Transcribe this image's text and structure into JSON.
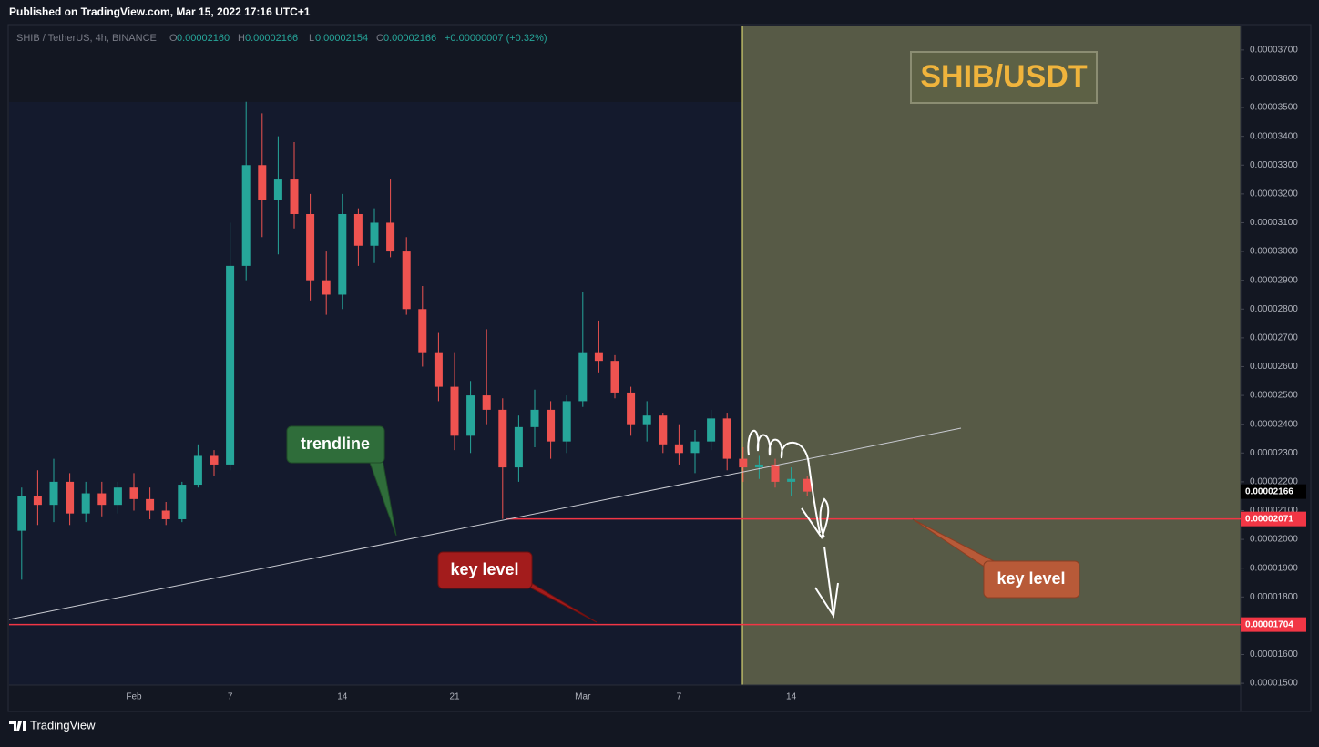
{
  "header": {
    "published": "Published on TradingView.com, Mar 15, 2022 17:16 UTC+1",
    "brand": "TradingView"
  },
  "legend": {
    "symbol": "SHIB / TetherUS, 4h, BINANCE",
    "open_key": "O",
    "open": "0.00002160",
    "high_key": "H",
    "high": "0.00002166",
    "low_key": "L",
    "low": "0.00002154",
    "close_key": "C",
    "close": "0.00002166",
    "change": "+0.00000007 (+0.32%)"
  },
  "chart_data": {
    "type": "candlestick",
    "categories": [
      null,
      null,
      null,
      null,
      null,
      null,
      null,
      "Feb",
      null,
      null,
      null,
      null,
      null,
      "7",
      null,
      null,
      null,
      null,
      null,
      null,
      "14",
      null,
      null,
      null,
      null,
      null,
      null,
      "21",
      null,
      null,
      null,
      null,
      null,
      null,
      null,
      "Mar",
      null,
      null,
      null,
      null,
      null,
      "7",
      null,
      null,
      null,
      null,
      null,
      null,
      "14",
      null
    ],
    "open": [
      2.03e-05,
      2.15e-05,
      2.12e-05,
      2.2e-05,
      2.09e-05,
      2.16e-05,
      2.12e-05,
      2.18e-05,
      2.14e-05,
      2.1e-05,
      2.07e-05,
      2.19e-05,
      2.29e-05,
      2.26e-05,
      2.95e-05,
      3.3e-05,
      3.18e-05,
      3.25e-05,
      3.13e-05,
      2.9e-05,
      2.85e-05,
      3.13e-05,
      3.02e-05,
      3.1e-05,
      3e-05,
      2.8e-05,
      2.65e-05,
      2.53e-05,
      2.36e-05,
      2.5e-05,
      2.45e-05,
      2.25e-05,
      2.39e-05,
      2.45e-05,
      2.34e-05,
      2.48e-05,
      2.65e-05,
      2.62e-05,
      2.51e-05,
      2.4e-05,
      2.43e-05,
      2.33e-05,
      2.3e-05,
      2.34e-05,
      2.42e-05,
      2.28e-05,
      2.25e-05,
      2.26e-05,
      2.2e-05,
      2.21e-05
    ],
    "high": [
      2.18e-05,
      2.24e-05,
      2.28e-05,
      2.23e-05,
      2.2e-05,
      2.2e-05,
      2.2e-05,
      2.23e-05,
      2.18e-05,
      2.13e-05,
      2.2e-05,
      2.33e-05,
      2.31e-05,
      3.1e-05,
      3.52e-05,
      3.48e-05,
      3.4e-05,
      3.38e-05,
      3.2e-05,
      3e-05,
      3.2e-05,
      3.15e-05,
      3.15e-05,
      3.25e-05,
      3.05e-05,
      2.88e-05,
      2.72e-05,
      2.65e-05,
      2.55e-05,
      2.73e-05,
      2.49e-05,
      2.43e-05,
      2.52e-05,
      2.48e-05,
      2.5e-05,
      2.86e-05,
      2.76e-05,
      2.64e-05,
      2.53e-05,
      2.48e-05,
      2.44e-05,
      2.4e-05,
      2.38e-05,
      2.45e-05,
      2.44e-05,
      2.32e-05,
      2.29e-05,
      2.28e-05,
      2.25e-05,
      2.22e-05
    ],
    "low": [
      1.86e-05,
      2.05e-05,
      2.06e-05,
      2.05e-05,
      2.06e-05,
      2.08e-05,
      2.09e-05,
      2.1e-05,
      2.07e-05,
      2.05e-05,
      2.06e-05,
      2.18e-05,
      2.22e-05,
      2.24e-05,
      2.9e-05,
      3.05e-05,
      2.99e-05,
      3.08e-05,
      2.83e-05,
      2.78e-05,
      2.8e-05,
      2.95e-05,
      2.96e-05,
      2.98e-05,
      2.78e-05,
      2.6e-05,
      2.48e-05,
      2.31e-05,
      2.3e-05,
      2.4e-05,
      2.071e-05,
      2.2e-05,
      2.32e-05,
      2.28e-05,
      2.3e-05,
      2.46e-05,
      2.58e-05,
      2.49e-05,
      2.36e-05,
      2.34e-05,
      2.3e-05,
      2.26e-05,
      2.23e-05,
      2.31e-05,
      2.24e-05,
      2.2e-05,
      2.21e-05,
      2.18e-05,
      2.15e-05,
      2.15e-05
    ],
    "close": [
      2.15e-05,
      2.12e-05,
      2.2e-05,
      2.09e-05,
      2.16e-05,
      2.12e-05,
      2.18e-05,
      2.14e-05,
      2.1e-05,
      2.07e-05,
      2.19e-05,
      2.29e-05,
      2.26e-05,
      2.95e-05,
      3.3e-05,
      3.18e-05,
      3.25e-05,
      3.13e-05,
      2.9e-05,
      2.85e-05,
      3.13e-05,
      3.02e-05,
      3.1e-05,
      3e-05,
      2.8e-05,
      2.65e-05,
      2.53e-05,
      2.36e-05,
      2.5e-05,
      2.45e-05,
      2.25e-05,
      2.39e-05,
      2.45e-05,
      2.34e-05,
      2.48e-05,
      2.65e-05,
      2.62e-05,
      2.51e-05,
      2.4e-05,
      2.43e-05,
      2.33e-05,
      2.3e-05,
      2.34e-05,
      2.42e-05,
      2.28e-05,
      2.25e-05,
      2.26e-05,
      2.2e-05,
      2.21e-05,
      2.166e-05
    ],
    "up_color": "#26a69a",
    "down_color": "#ef5350",
    "ylim": [
      1.494e-05,
      3.785e-05
    ],
    "yticks": [
      {
        "value": 1.5e-05,
        "label": "0.00001500"
      },
      {
        "value": 1.6e-05,
        "label": "0.00001600"
      },
      {
        "value": 1.7e-05,
        "label": "0.00001700"
      },
      {
        "value": 1.8e-05,
        "label": "0.00001800"
      },
      {
        "value": 1.9e-05,
        "label": "0.00001900"
      },
      {
        "value": 2e-05,
        "label": "0.00002000"
      },
      {
        "value": 2.1e-05,
        "label": "0.00002100"
      },
      {
        "value": 2.2e-05,
        "label": "0.00002200"
      },
      {
        "value": 2.3e-05,
        "label": "0.00002300"
      },
      {
        "value": 2.4e-05,
        "label": "0.00002400"
      },
      {
        "value": 2.5e-05,
        "label": "0.00002500"
      },
      {
        "value": 2.6e-05,
        "label": "0.00002600"
      },
      {
        "value": 2.7e-05,
        "label": "0.00002700"
      },
      {
        "value": 2.8e-05,
        "label": "0.00002800"
      },
      {
        "value": 2.9e-05,
        "label": "0.00002900"
      },
      {
        "value": 3e-05,
        "label": "0.00003000"
      },
      {
        "value": 3.1e-05,
        "label": "0.00003100"
      },
      {
        "value": 3.2e-05,
        "label": "0.00003200"
      },
      {
        "value": 3.3e-05,
        "label": "0.00003300"
      },
      {
        "value": 3.4e-05,
        "label": "0.00003400"
      },
      {
        "value": 3.5e-05,
        "label": "0.00003500"
      },
      {
        "value": 3.6e-05,
        "label": "0.00003600"
      },
      {
        "value": 3.7e-05,
        "label": "0.00003700"
      }
    ],
    "key_levels": [
      2.071e-05,
      1.704e-05
    ],
    "key_level_color": "#f23645",
    "last_price": 2.166e-05,
    "annotations": [
      "trendline",
      "key level",
      "key level",
      "SHIB/USDT"
    ]
  }
}
